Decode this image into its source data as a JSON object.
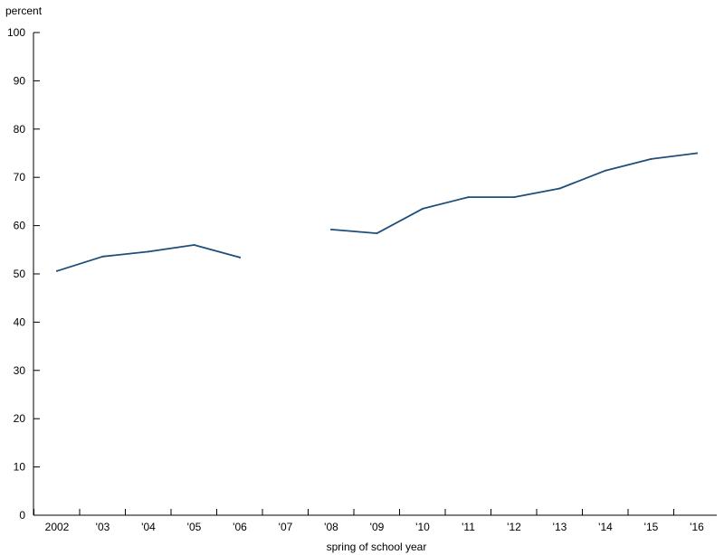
{
  "chart_data": {
    "type": "line",
    "title": "",
    "ylabel": "percent",
    "xlabel": "spring of school year",
    "ylim": [
      0,
      100
    ],
    "yticks": [
      0,
      10,
      20,
      30,
      40,
      50,
      60,
      70,
      80,
      90,
      100
    ],
    "categories": [
      "2002",
      "'03",
      "'04",
      "'05",
      "'06",
      "'07",
      "'08",
      "'09",
      "'10",
      "'11",
      "'12",
      "'13",
      "'14",
      "'15",
      "'16"
    ],
    "grid": false,
    "series": [
      {
        "color": "#1f4e79",
        "values": [
          50.6,
          53.6,
          54.6,
          56.0,
          53.4,
          null,
          59.2,
          58.4,
          63.5,
          65.9,
          65.9,
          67.7,
          71.4,
          73.8,
          75.0
        ]
      }
    ]
  }
}
